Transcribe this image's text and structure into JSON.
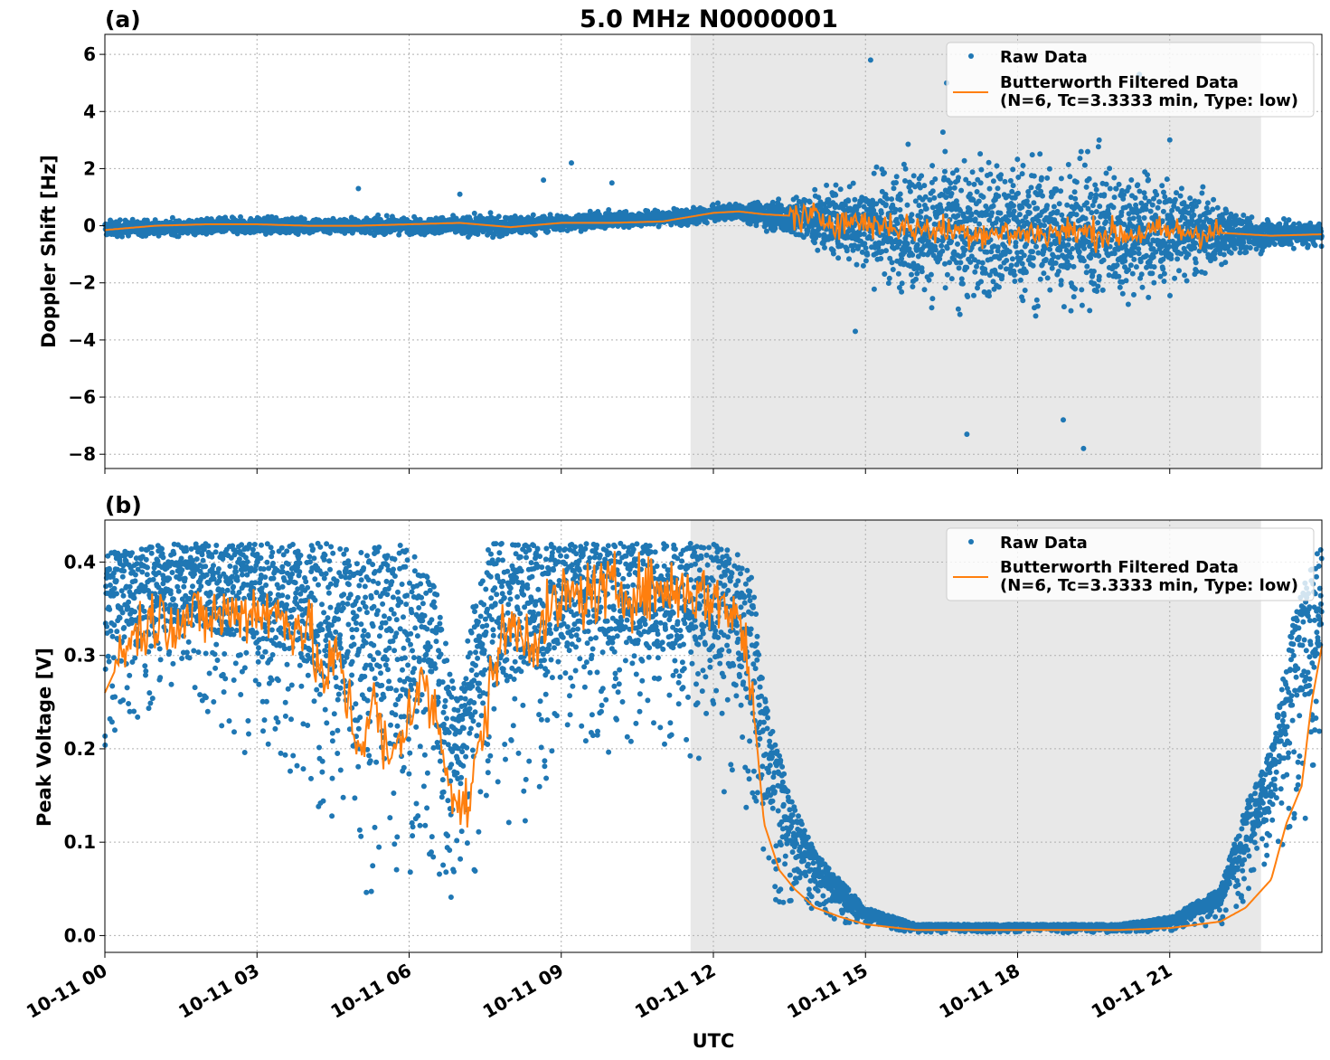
{
  "title": "5.0 MHz N0000001",
  "colors": {
    "raw": "#1f77b4",
    "filtered": "#ff7f0e",
    "shade": "#e8e8e8",
    "grid": "#b0b0b0"
  },
  "x_ticks": [
    "10-11 00",
    "10-11 03",
    "10-11 06",
    "10-11 09",
    "10-11 12",
    "10-11 15",
    "10-11 18",
    "10-11 21"
  ],
  "xlabel": "UTC",
  "legend": {
    "raw": "Raw Data",
    "filtered_line1": "Butterworth Filtered Data",
    "filtered_line2": "(N=6, Tc=3.3333 min, Type: low)"
  },
  "chart_data": [
    {
      "type": "scatter",
      "panel_label": "(a)",
      "ylabel": "Doppler Shift [Hz]",
      "xlim_hours": [
        0,
        24
      ],
      "ylim": [
        -8.5,
        6.7
      ],
      "y_ticks": [
        "6",
        "4",
        "2",
        "0",
        "−2",
        "−4",
        "−6",
        "−8"
      ],
      "y_tick_values": [
        6,
        4,
        2,
        0,
        -2,
        -4,
        -6,
        -8
      ],
      "shaded_interval_hours": [
        11.55,
        22.8
      ],
      "grid": true,
      "legend_position": "upper right",
      "series": [
        {
          "name": "Raw Data",
          "marker": "dot",
          "envelope": {
            "x": [
              0,
              3,
              6,
              8,
              9,
              10,
              11.5,
              12.5,
              13.5,
              14.5,
              15.5,
              16.5,
              17.5,
              18.5,
              19.5,
              20.5,
              21.5,
              22.5,
              24
            ],
            "center": [
              -0.1,
              0.0,
              0.0,
              0.0,
              0.1,
              0.2,
              0.3,
              0.5,
              0.3,
              0.1,
              0.0,
              -0.2,
              -0.2,
              -0.2,
              -0.2,
              -0.2,
              -0.3,
              -0.3,
              -0.3
            ],
            "half_spread": [
              0.3,
              0.3,
              0.3,
              0.4,
              0.3,
              0.3,
              0.3,
              0.3,
              0.7,
              1.4,
              2.2,
              2.7,
              2.8,
              2.8,
              2.7,
              2.4,
              1.6,
              0.7,
              0.4
            ]
          },
          "outliers": [
            [
              5.0,
              1.3
            ],
            [
              7.0,
              1.1
            ],
            [
              8.65,
              1.6
            ],
            [
              9.2,
              2.2
            ],
            [
              10.0,
              1.5
            ],
            [
              15.1,
              5.8
            ],
            [
              17.0,
              -7.3
            ],
            [
              19.3,
              -7.8
            ],
            [
              20.4,
              5.3
            ],
            [
              16.6,
              5.0
            ],
            [
              21.0,
              3.0
            ],
            [
              18.9,
              -6.8
            ],
            [
              14.8,
              -3.7
            ]
          ]
        },
        {
          "name": "Butterworth Filtered Data (N=6, Tc=3.3333 min, Type: low)",
          "x": [
            0,
            1,
            2,
            3,
            4,
            5,
            6,
            7,
            8,
            9,
            10,
            11,
            11.5,
            12,
            12.5,
            13,
            13.5,
            14,
            15,
            16,
            17,
            18,
            19,
            20,
            21,
            22,
            23,
            24
          ],
          "y": [
            -0.15,
            0.0,
            0.05,
            0.05,
            0.0,
            0.0,
            0.05,
            0.1,
            -0.05,
            0.1,
            0.1,
            0.15,
            0.3,
            0.45,
            0.5,
            0.4,
            0.35,
            0.25,
            0.1,
            -0.1,
            -0.2,
            -0.3,
            -0.2,
            -0.3,
            -0.2,
            -0.25,
            -0.35,
            -0.3
          ],
          "noise": {
            "from_hour": 13.5,
            "to_hour": 22.0,
            "amplitude": 0.45
          }
        }
      ]
    },
    {
      "type": "scatter",
      "panel_label": "(b)",
      "ylabel": "Peak Voltage [V]",
      "xlim_hours": [
        0,
        24
      ],
      "ylim": [
        -0.018,
        0.445
      ],
      "y_ticks": [
        "0.4",
        "0.3",
        "0.2",
        "0.1",
        "0.0"
      ],
      "y_tick_values": [
        0.4,
        0.3,
        0.2,
        0.1,
        0.0
      ],
      "shaded_interval_hours": [
        11.55,
        22.8
      ],
      "grid": true,
      "legend_position": "upper right",
      "series": [
        {
          "name": "Raw Data",
          "marker": "dot",
          "band": {
            "x": [
              0,
              1,
              2,
              3,
              4,
              4.5,
              5,
              5.5,
              6,
              6.5,
              7,
              7.3,
              7.6,
              8,
              8.5,
              9,
              10,
              11,
              12,
              12.5,
              12.8,
              13,
              13.5,
              14,
              14.5,
              15,
              16,
              18,
              20,
              21,
              22,
              22.5,
              23,
              23.5,
              24
            ],
            "low": [
              0.17,
              0.23,
              0.22,
              0.18,
              0.15,
              0.05,
              0.04,
              0.04,
              0.05,
              0.04,
              0.04,
              0.06,
              0.12,
              0.1,
              0.12,
              0.18,
              0.19,
              0.17,
              0.16,
              0.12,
              0.06,
              0.03,
              0.02,
              0.015,
              0.01,
              0.005,
              0.003,
              0.003,
              0.003,
              0.005,
              0.01,
              0.03,
              0.06,
              0.1,
              0.15
            ],
            "high": [
              0.41,
              0.42,
              0.42,
              0.42,
              0.42,
              0.42,
              0.41,
              0.42,
              0.42,
              0.38,
              0.25,
              0.38,
              0.42,
              0.42,
              0.42,
              0.42,
              0.42,
              0.42,
              0.42,
              0.41,
              0.38,
              0.26,
              0.15,
              0.09,
              0.06,
              0.03,
              0.012,
              0.012,
              0.012,
              0.02,
              0.05,
              0.14,
              0.2,
              0.36,
              0.42
            ]
          }
        },
        {
          "name": "Butterworth Filtered Data (N=6, Tc=3.3333 min, Type: low)",
          "x": [
            0,
            0.5,
            1,
            2,
            3,
            4,
            4.3,
            4.6,
            5,
            5.3,
            5.6,
            6,
            6.3,
            6.6,
            6.9,
            7.1,
            7.4,
            7.7,
            8,
            8.5,
            9,
            10,
            11,
            11.5,
            12,
            12.4,
            12.6,
            12.8,
            13,
            13.3,
            13.6,
            14,
            14.5,
            15,
            16,
            17,
            18,
            19,
            20,
            21,
            22,
            22.5,
            23,
            23.3,
            23.6,
            23.8,
            24
          ],
          "y": [
            0.26,
            0.32,
            0.34,
            0.34,
            0.35,
            0.33,
            0.27,
            0.3,
            0.2,
            0.25,
            0.18,
            0.24,
            0.27,
            0.22,
            0.15,
            0.13,
            0.2,
            0.3,
            0.33,
            0.32,
            0.36,
            0.37,
            0.37,
            0.37,
            0.36,
            0.35,
            0.32,
            0.24,
            0.12,
            0.07,
            0.05,
            0.03,
            0.02,
            0.012,
            0.006,
            0.006,
            0.006,
            0.006,
            0.006,
            0.008,
            0.015,
            0.03,
            0.06,
            0.12,
            0.16,
            0.25,
            0.31
          ],
          "noise": {
            "from_hour": 0.2,
            "to_hour": 12.8,
            "amplitude": 0.03
          }
        }
      ]
    }
  ]
}
